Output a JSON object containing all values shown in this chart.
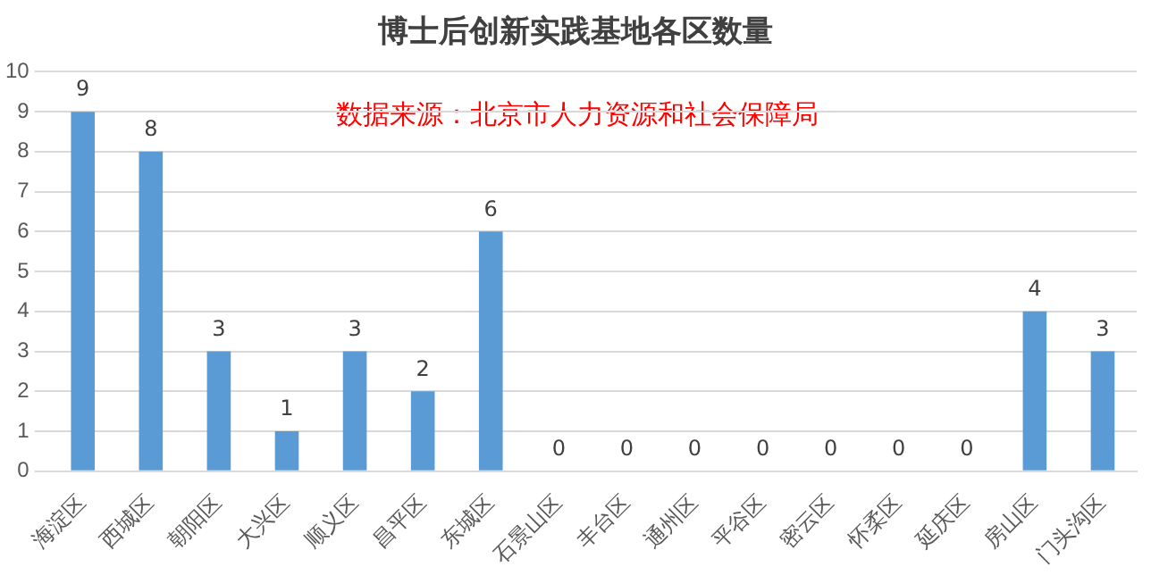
{
  "chart_data": {
    "type": "bar",
    "title": "博士后创新实践基地各区数量",
    "annotations": [
      "数据来源：北京市人力资源和社会保障局"
    ],
    "categories": [
      "海淀区",
      "西城区",
      "朝阳区",
      "大兴区",
      "顺义区",
      "昌平区",
      "东城区",
      "石景山区",
      "丰台区",
      "通州区",
      "平谷区",
      "密云区",
      "怀柔区",
      "延庆区",
      "房山区",
      "门头沟区"
    ],
    "values": [
      9,
      8,
      3,
      1,
      3,
      2,
      6,
      0,
      0,
      0,
      0,
      0,
      0,
      0,
      4,
      3
    ],
    "color": "#5b9bd5",
    "ylim": [
      0,
      10
    ],
    "yticks": [
      0,
      1,
      2,
      3,
      4,
      5,
      6,
      7,
      8,
      9,
      10
    ],
    "grid": "y",
    "data_labels": true
  }
}
